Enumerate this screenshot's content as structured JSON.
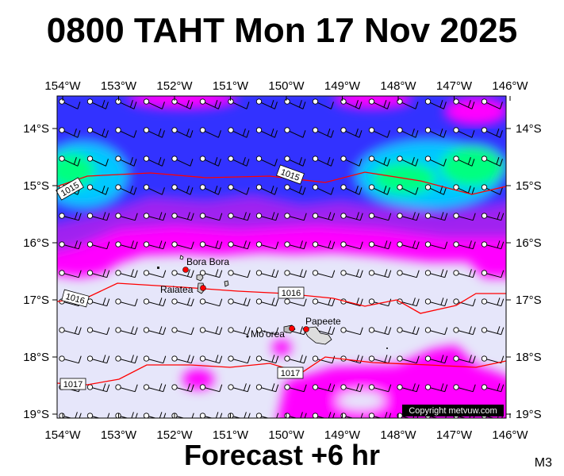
{
  "title": "0800 TAHT Mon 17 Nov 2025",
  "footer": "Forecast +6 hr",
  "model_tag": "M3",
  "copyright": "Copyright metvuw.com",
  "map": {
    "lon_labels": [
      "154°W",
      "153°W",
      "152°W",
      "151°W",
      "150°W",
      "149°W",
      "148°W",
      "147°W",
      "146°W"
    ],
    "lat_labels": [
      "14°S",
      "15°S",
      "16°S",
      "17°S",
      "18°S",
      "19°S"
    ],
    "places": [
      {
        "name": "Bora Bora"
      },
      {
        "name": "Raiatea"
      },
      {
        "name": "Mo'orea"
      },
      {
        "name": "Papeete"
      }
    ],
    "isobars": [
      {
        "label": "1015",
        "pressure_hpa": 1015
      },
      {
        "label": "1016",
        "pressure_hpa": 1016
      },
      {
        "label": "1017",
        "pressure_hpa": 1017
      }
    ],
    "colors": {
      "rain_light": "#e6e6fa",
      "rain_magenta": "#ff00ff",
      "rain_violet": "#a020f0",
      "rain_blue": "#3030ff",
      "rain_cyan": "#00c8ff",
      "rain_green": "#00ff80",
      "isobar": "#ff0000"
    },
    "wind_barbs": "westerly to north-westerly, 5-15 kt across region"
  }
}
